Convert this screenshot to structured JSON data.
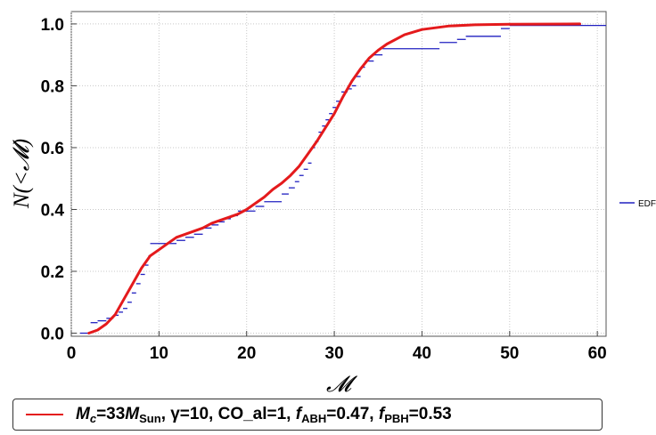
{
  "chart_data": {
    "type": "line",
    "xlabel": "𝓜",
    "ylabel": "N(<𝓜)",
    "xlim": [
      0,
      61
    ],
    "ylim": [
      -0.01,
      1.04
    ],
    "xticks": [
      "0",
      "10",
      "20",
      "30",
      "40",
      "50",
      "60"
    ],
    "yticks": [
      "0.0",
      "0.2",
      "0.4",
      "0.6",
      "0.8",
      "1.0"
    ],
    "grid": true,
    "series": [
      {
        "name": "EDF",
        "style": "step",
        "color": "#2020c0",
        "points": [
          [
            1.0,
            0.0
          ],
          [
            2.2,
            0.034
          ],
          [
            3.0,
            0.04
          ],
          [
            4.0,
            0.048
          ],
          [
            4.8,
            0.058
          ],
          [
            5.4,
            0.068
          ],
          [
            5.9,
            0.08
          ],
          [
            6.4,
            0.1
          ],
          [
            6.9,
            0.13
          ],
          [
            7.4,
            0.16
          ],
          [
            7.9,
            0.19
          ],
          [
            8.4,
            0.22
          ],
          [
            8.8,
            0.25
          ],
          [
            9.0,
            0.29
          ],
          [
            12.0,
            0.3
          ],
          [
            13.0,
            0.31
          ],
          [
            14.0,
            0.32
          ],
          [
            15.0,
            0.34
          ],
          [
            16.0,
            0.35
          ],
          [
            16.8,
            0.36
          ],
          [
            17.5,
            0.37
          ],
          [
            18.2,
            0.38
          ],
          [
            19.0,
            0.395
          ],
          [
            21.0,
            0.41
          ],
          [
            22.0,
            0.425
          ],
          [
            24.0,
            0.45
          ],
          [
            24.8,
            0.47
          ],
          [
            25.5,
            0.49
          ],
          [
            26.0,
            0.51
          ],
          [
            26.5,
            0.53
          ],
          [
            27.0,
            0.55
          ],
          [
            27.4,
            0.6
          ],
          [
            27.8,
            0.62
          ],
          [
            28.2,
            0.65
          ],
          [
            28.6,
            0.67
          ],
          [
            29.0,
            0.69
          ],
          [
            29.4,
            0.71
          ],
          [
            29.8,
            0.73
          ],
          [
            30.2,
            0.75
          ],
          [
            30.8,
            0.78
          ],
          [
            31.5,
            0.79
          ],
          [
            32.0,
            0.8
          ],
          [
            32.5,
            0.83
          ],
          [
            33.0,
            0.86
          ],
          [
            33.5,
            0.88
          ],
          [
            34.5,
            0.9
          ],
          [
            35.5,
            0.92
          ],
          [
            42.0,
            0.94
          ],
          [
            44.0,
            0.95
          ],
          [
            45.0,
            0.96
          ],
          [
            49.0,
            0.985
          ],
          [
            50.0,
            0.995
          ],
          [
            61.0,
            0.995
          ]
        ]
      },
      {
        "name": "",
        "style": "smooth",
        "color": "#e41a1c",
        "points": [
          [
            2.0,
            0.0
          ],
          [
            3.0,
            0.01
          ],
          [
            4.0,
            0.03
          ],
          [
            5.0,
            0.06
          ],
          [
            6.0,
            0.11
          ],
          [
            7.0,
            0.16
          ],
          [
            8.0,
            0.21
          ],
          [
            9.0,
            0.25
          ],
          [
            10.0,
            0.27
          ],
          [
            11.0,
            0.29
          ],
          [
            12.0,
            0.31
          ],
          [
            13.0,
            0.32
          ],
          [
            14.0,
            0.33
          ],
          [
            15.0,
            0.34
          ],
          [
            16.0,
            0.355
          ],
          [
            17.0,
            0.365
          ],
          [
            18.0,
            0.375
          ],
          [
            19.0,
            0.385
          ],
          [
            20.0,
            0.4
          ],
          [
            21.0,
            0.42
          ],
          [
            22.0,
            0.44
          ],
          [
            23.0,
            0.465
          ],
          [
            24.0,
            0.485
          ],
          [
            25.0,
            0.51
          ],
          [
            26.0,
            0.54
          ],
          [
            27.0,
            0.58
          ],
          [
            28.0,
            0.62
          ],
          [
            29.0,
            0.665
          ],
          [
            30.0,
            0.71
          ],
          [
            31.0,
            0.765
          ],
          [
            32.0,
            0.815
          ],
          [
            33.0,
            0.855
          ],
          [
            34.0,
            0.89
          ],
          [
            35.0,
            0.915
          ],
          [
            36.0,
            0.935
          ],
          [
            38.0,
            0.965
          ],
          [
            40.0,
            0.982
          ],
          [
            43.0,
            0.993
          ],
          [
            46.0,
            0.997
          ],
          [
            50.0,
            0.999
          ],
          [
            58.0,
            1.0
          ]
        ]
      }
    ],
    "legend_side_label": "EDF",
    "legend": {
      "m_symbol": "M",
      "m_sub": "c",
      "m_value": "=33",
      "sun_symbol": "M",
      "sun_sub": "Sun",
      "gamma_text": ", γ=10, CO_al=1, ",
      "f_abh_symbol": "f",
      "f_abh_sub": "ABH",
      "f_abh_value": "=0.47, ",
      "f_pbh_symbol": "f",
      "f_pbh_sub": "PBH",
      "f_pbh_value": "=0.53"
    }
  }
}
